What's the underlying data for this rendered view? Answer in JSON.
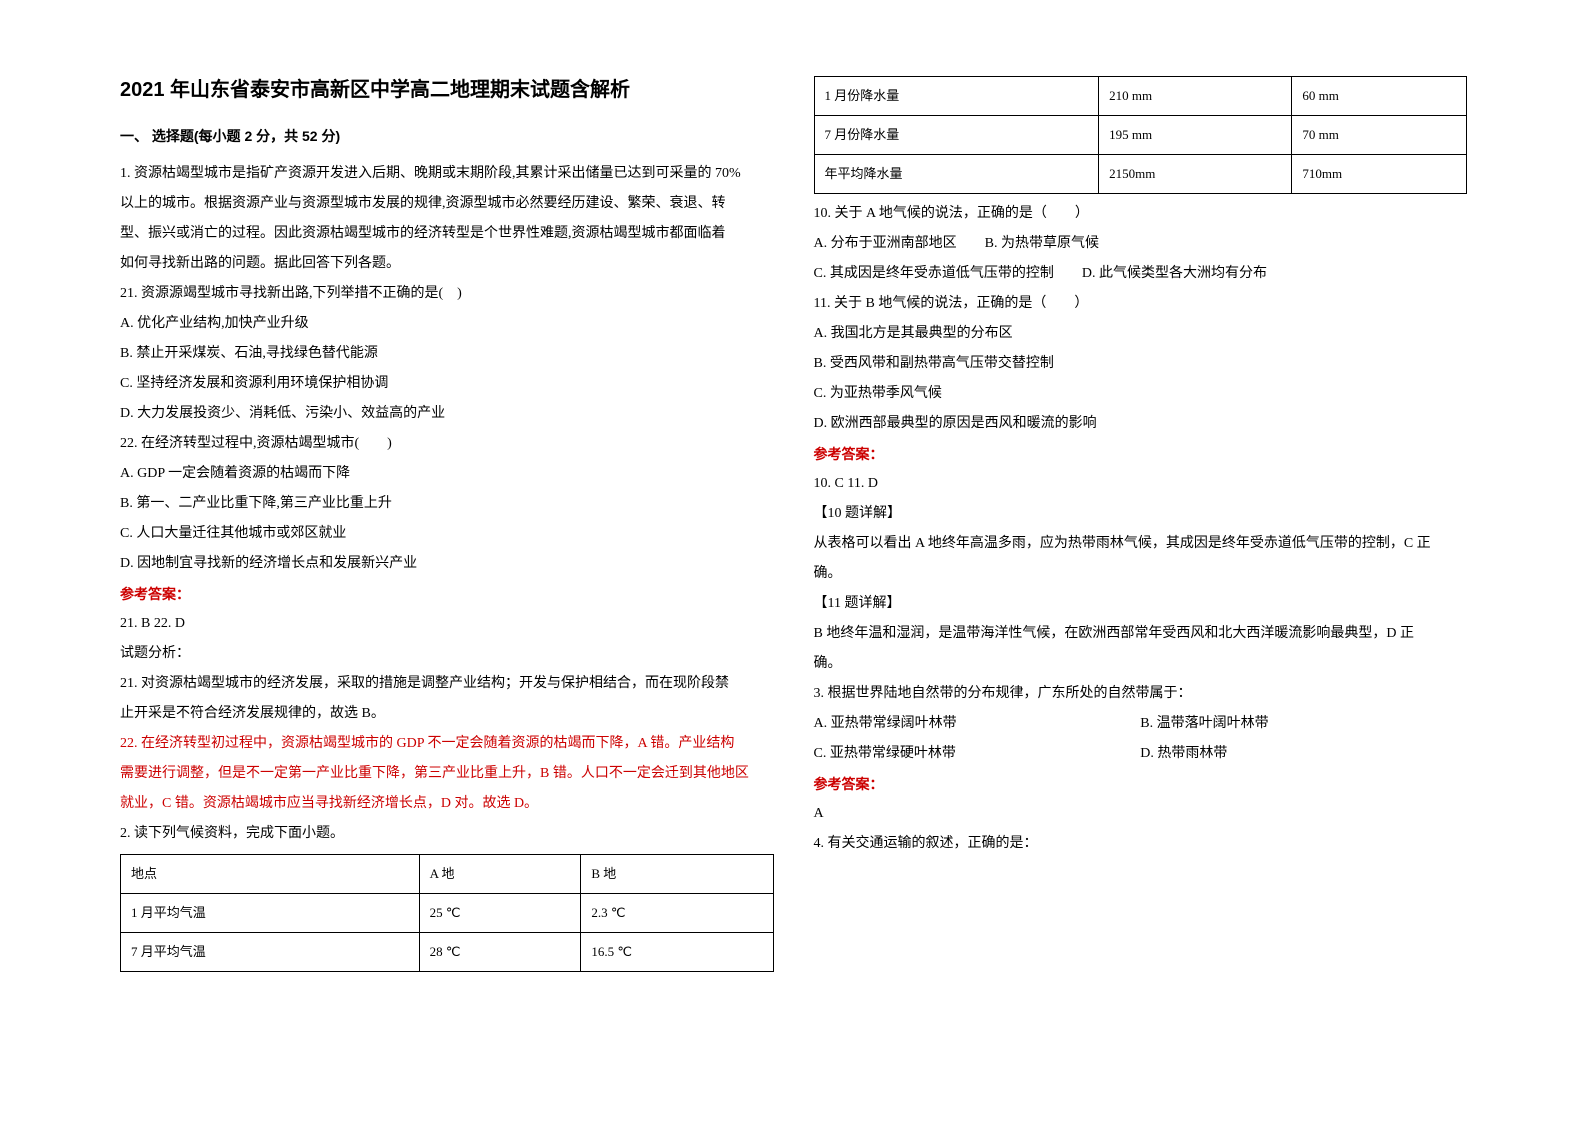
{
  "title": "2021 年山东省泰安市高新区中学高二地理期末试题含解析",
  "section1": "一、 选择题(每小题 2 分，共 52 分)",
  "q1": {
    "stem1": "1. 资源枯竭型城市是指矿产资源开发进入后期、晚期或末期阶段,其累计采出储量已达到可采量的 70%",
    "stem2": "以上的城市。根据资源产业与资源型城市发展的规律,资源型城市必然要经历建设、繁荣、衰退、转",
    "stem3": "型、振兴或消亡的过程。因此资源枯竭型城市的经济转型是个世界性难题,资源枯竭型城市都面临着",
    "stem4": "如何寻找新出路的问题。据此回答下列各题。",
    "sub21": "21.  资源源竭型城市寻找新出路,下列举措不正确的是(　)",
    "a21": "A.  优化产业结构,加快产业升级",
    "b21": "B.  禁止开采煤炭、石油,寻找绿色替代能源",
    "c21": "C.  坚持经济发展和资源利用环境保护相协调",
    "d21": "D.  大力发展投资少、消耗低、污染小、效益高的产业",
    "sub22": "22.  在经济转型过程中,资源枯竭型城市(　　)",
    "a22": "A.  GDP 一定会随着资源的枯竭而下降",
    "b22": "B.  第一、二产业比重下降,第三产业比重上升",
    "c22": "C.  人口大量迁往其他城市或郊区就业",
    "d22": "D.  因地制宜寻找新的经济增长点和发展新兴产业",
    "ansLabel": "参考答案：",
    "ans": "21. B        22. D",
    "analysisHead": "试题分析：",
    "a1": "21.  对资源枯竭型城市的经济发展，采取的措施是调整产业结构；开发与保护相结合，而在现阶段禁",
    "a2": "止开采是不符合经济发展规律的，故选 B。",
    "a3": "22.  在经济转型初过程中，资源枯竭型城市的 GDP 不一定会随着资源的枯竭而下降，A 错。产业结构",
    "a4": "需要进行调整，但是不一定第一产业比重下降，第三产业比重上升，B 错。人口不一定会迁到其他地区",
    "a5": "就业，C 错。资源枯竭城市应当寻找新经济增长点，D 对。故选 D。"
  },
  "q2": {
    "stem": "2. 读下列气候资料，完成下面小题。",
    "table": {
      "r1c1": "地点",
      "r1c2": "A 地",
      "r1c3": "B 地",
      "r2c1": "1 月平均气温",
      "r2c2": "25 ℃",
      "r2c3": "2.3 ℃",
      "r3c1": "7 月平均气温",
      "r3c2": "28 ℃",
      "r3c3": "16.5 ℃",
      "r4c1": "1 月份降水量",
      "r4c2": "210 mm",
      "r4c3": "60 mm",
      "r5c1": "7 月份降水量",
      "r5c2": "195 mm",
      "r5c3": "70 mm",
      "r6c1": "年平均降水量",
      "r6c2": "2150mm",
      "r6c3": "710mm"
    },
    "sub10": "10.  关于 A 地气候的说法，正确的是（　　）",
    "a10": "A.  分布于亚洲南部地区　　B.  为热带草原气候",
    "c10": "C.  其成因是终年受赤道低气压带的控制　　D.  此气候类型各大洲均有分布",
    "sub11": "11.  关于 B 地气候的说法，正确的是（　　）",
    "a11": "A.  我国北方是其最典型的分布区",
    "b11": "B.  受西风带和副热带高气压带交替控制",
    "c11": "C.  为亚热带季风气候",
    "d11": "D.  欧洲西部最典型的原因是西风和暖流的影响",
    "ansLabel": "参考答案：",
    "ans": "10. C        11. D",
    "h10": "【10 题详解】",
    "e10a": "从表格可以看出 A 地终年高温多雨，应为热带雨林气候，其成因是终年受赤道低气压带的控制，C 正",
    "e10b": "确。",
    "h11": "【11 题详解】",
    "e11a": "B 地终年温和湿润，是温带海洋性气候，在欧洲西部常年受西风和北大西洋暖流影响最典型，D 正",
    "e11b": "确。"
  },
  "q3": {
    "stem": "3. 根据世界陆地自然带的分布规律，广东所处的自然带属于：",
    "optA": "A.  亚热带常绿阔叶林带",
    "optB": "B.  温带落叶阔叶林带",
    "optC": "C.  亚热带常绿硬叶林带",
    "optD": "D.  热带雨林带",
    "ansLabel": "参考答案：",
    "ans": "A"
  },
  "q4": {
    "stem": "4. 有关交通运输的叙述，正确的是："
  }
}
